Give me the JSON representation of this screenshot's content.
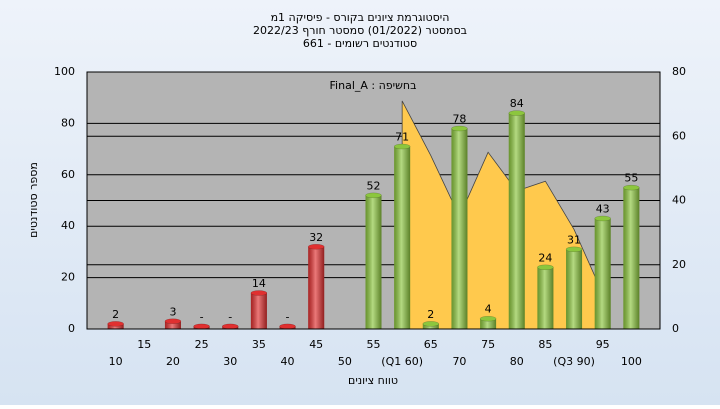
{
  "chart_data": {
    "type": "bar",
    "title": [
      "היסטוגרמת ציונים בקורס - פיסיקה 1מ",
      "בסמסטר  (01/2022)  סמסטר חורף  2022/23",
      "סטודנטים רשומים - 661"
    ],
    "annotation": "Final_A : בחשיפה",
    "x_label": "טווח ציונים",
    "y_label": "מספר סטודנטים",
    "categories": [
      "10",
      "15",
      "20",
      "25",
      "30",
      "35",
      "40",
      "45",
      "50",
      "55",
      "(Q1 60)",
      "65",
      "70",
      "75",
      "80",
      "85",
      "(Q3 90)",
      "95",
      "100"
    ],
    "series": [
      {
        "values": [
          2,
          null,
          3,
          1,
          1,
          14,
          1,
          32,
          null,
          52,
          71,
          2,
          78,
          4,
          84,
          24,
          31,
          43,
          55
        ],
        "value_labels": [
          "2",
          null,
          "3",
          "-",
          "-",
          "14",
          "-",
          "32",
          null,
          "52",
          "71",
          "2",
          "78",
          "4",
          "84",
          "24",
          "31",
          "43",
          "55"
        ],
        "colors": [
          "#e03030",
          "#e03030",
          "#e03030",
          "#e03030",
          "#e03030",
          "#e03030",
          "#e03030",
          "#e03030",
          "#e03030",
          "#8cc63e",
          "#8cc63e",
          "#8cc63e",
          "#8cc63e",
          "#8cc63e",
          "#8cc63e",
          "#8cc63e",
          "#8cc63e",
          "#8cc63e",
          "#8cc63e"
        ]
      },
      {
        "type": "area",
        "axis": "y2",
        "color": "#ffc94d",
        "values": [
          null,
          null,
          null,
          null,
          null,
          null,
          null,
          null,
          null,
          null,
          71,
          54,
          35,
          55,
          43,
          46,
          31,
          11,
          null
        ]
      }
    ],
    "ylim": [
      0,
      100
    ],
    "yticks": [
      0,
      20,
      40,
      60,
      80,
      100
    ],
    "y2lim": [
      0,
      80
    ],
    "y2ticks": [
      0,
      20,
      40,
      60,
      80
    ],
    "grid": true
  }
}
